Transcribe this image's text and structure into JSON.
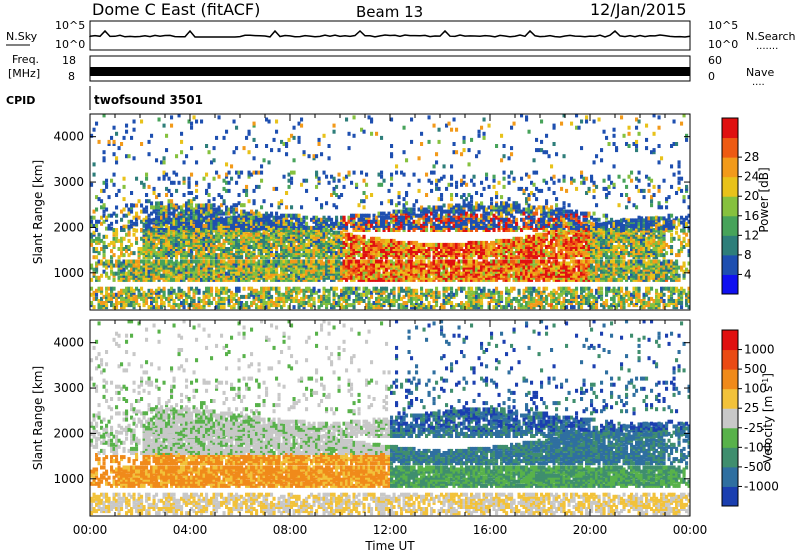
{
  "header": {
    "station": "Dome C East (fitACF)",
    "beam": "Beam 13",
    "date": "12/Jan/2015"
  },
  "panels": {
    "nsky": {
      "label": "N.Sky",
      "tick_top": "10^5",
      "tick_bottom": "10^0",
      "right_label": "N.Search",
      "right_tick_top": "10^5",
      "right_tick_bottom": "10^0",
      "right_dots": "......."
    },
    "freq": {
      "label_top": "Freq.",
      "label_unit": "[MHz]",
      "tick_top": "18",
      "tick_bottom": "8",
      "right_label": "Nave",
      "right_tick_top": "60",
      "right_tick_bottom": "0",
      "right_dots": "...."
    },
    "cpid": {
      "label": "CPID",
      "text": "twofsound 3501"
    }
  },
  "chart_data": [
    {
      "type": "heatmap",
      "name": "power",
      "ylabel": "Slant Range [km]",
      "ylim": [
        180,
        4500
      ],
      "yticks": [
        "1000",
        "2000",
        "3000",
        "4000"
      ],
      "xlim_hours": [
        0,
        24
      ],
      "colorbar": {
        "label": "Power [dB]",
        "ticks": [
          "4",
          "8",
          "12",
          "16",
          "20",
          "24",
          "28"
        ],
        "colors": [
          "#1010f0",
          "#1e4fb0",
          "#2e7e7a",
          "#47a35a",
          "#86c13e",
          "#e8c21a",
          "#f29a1a",
          "#ee5a12",
          "#e01010"
        ]
      }
    },
    {
      "type": "heatmap",
      "name": "velocity",
      "ylabel": "Slant Range [km]",
      "ylim": [
        180,
        4500
      ],
      "yticks": [
        "1000",
        "2000",
        "3000",
        "4000"
      ],
      "xlim_hours": [
        0,
        24
      ],
      "xlabel": "Time UT",
      "xticks": [
        "00:00",
        "04:00",
        "08:00",
        "12:00",
        "16:00",
        "20:00",
        "00:00"
      ],
      "colorbar": {
        "label": "Velocity [m s",
        "label_sup": "-1",
        "label_end": "]",
        "ticks": [
          "1000",
          "500",
          "100",
          "25",
          "-25",
          "-100",
          "-500",
          "-1000"
        ],
        "colors": [
          "#1b3fb0",
          "#2f6fa0",
          "#3f8e6e",
          "#58b24a",
          "#c8c8c8",
          "#f2c23a",
          "#f08a1a",
          "#ea4a14",
          "#e01010"
        ]
      }
    }
  ]
}
